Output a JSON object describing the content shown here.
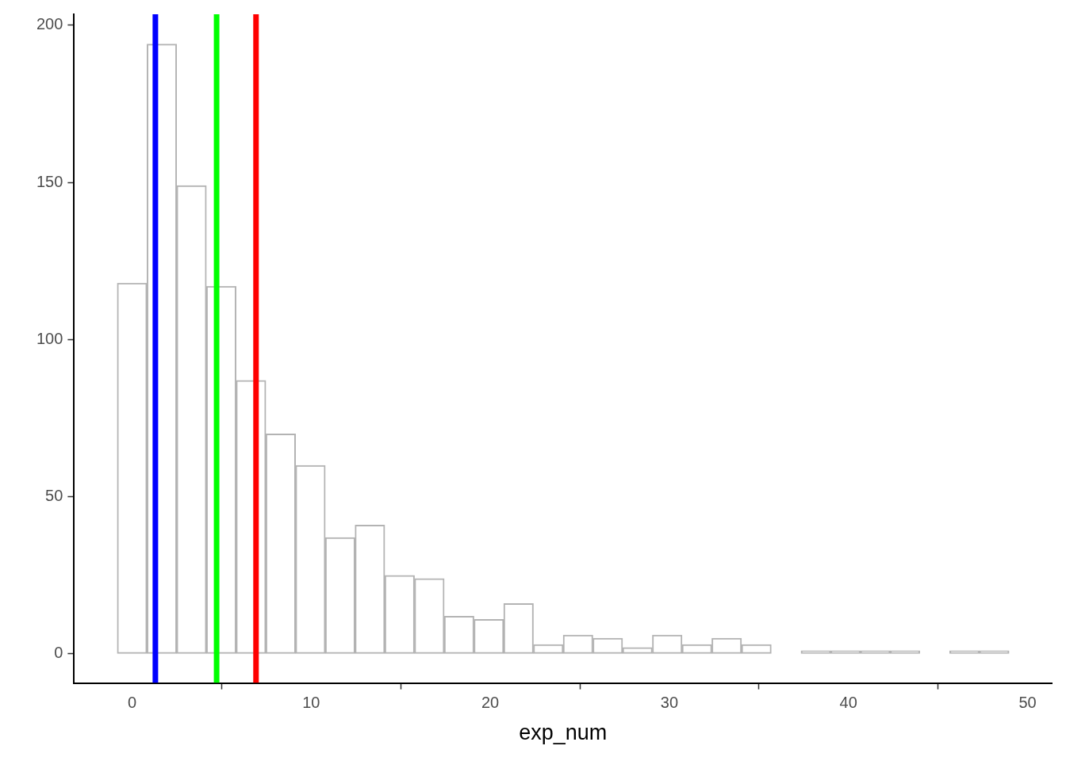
{
  "chart_data": {
    "type": "histogram",
    "x_label": "exp_num",
    "bins": [
      -0.83,
      0.83,
      2.49,
      4.15,
      5.81,
      7.47,
      9.13,
      10.79,
      12.45,
      14.11,
      15.77,
      17.43,
      19.09,
      20.75,
      22.41,
      24.07,
      25.73,
      27.39,
      29.05,
      30.71,
      32.37,
      34.03,
      35.69,
      37.35,
      39.01,
      40.67,
      42.33,
      43.99,
      45.65,
      47.31,
      48.97
    ],
    "counts": [
      118,
      194,
      149,
      117,
      87,
      70,
      60,
      37,
      41,
      25,
      24,
      12,
      11,
      16,
      3,
      6,
      5,
      2,
      6,
      3,
      5,
      3,
      0,
      1,
      1,
      1,
      1,
      0,
      1,
      1
    ],
    "color": "#b3b3b3",
    "xlim": [
      -3.24,
      51.35
    ],
    "ylim": [
      -9.26,
      203.5
    ],
    "xticks": [
      0,
      10,
      20,
      30,
      40,
      50
    ],
    "yticks": [
      0,
      50,
      100,
      150,
      200
    ],
    "grid": false,
    "reference_lines": [
      {
        "x": 1.3,
        "color": "#0000ff"
      },
      {
        "x": 4.72,
        "color": "#00ff00"
      },
      {
        "x": 6.92,
        "color": "#ff0000"
      }
    ]
  }
}
